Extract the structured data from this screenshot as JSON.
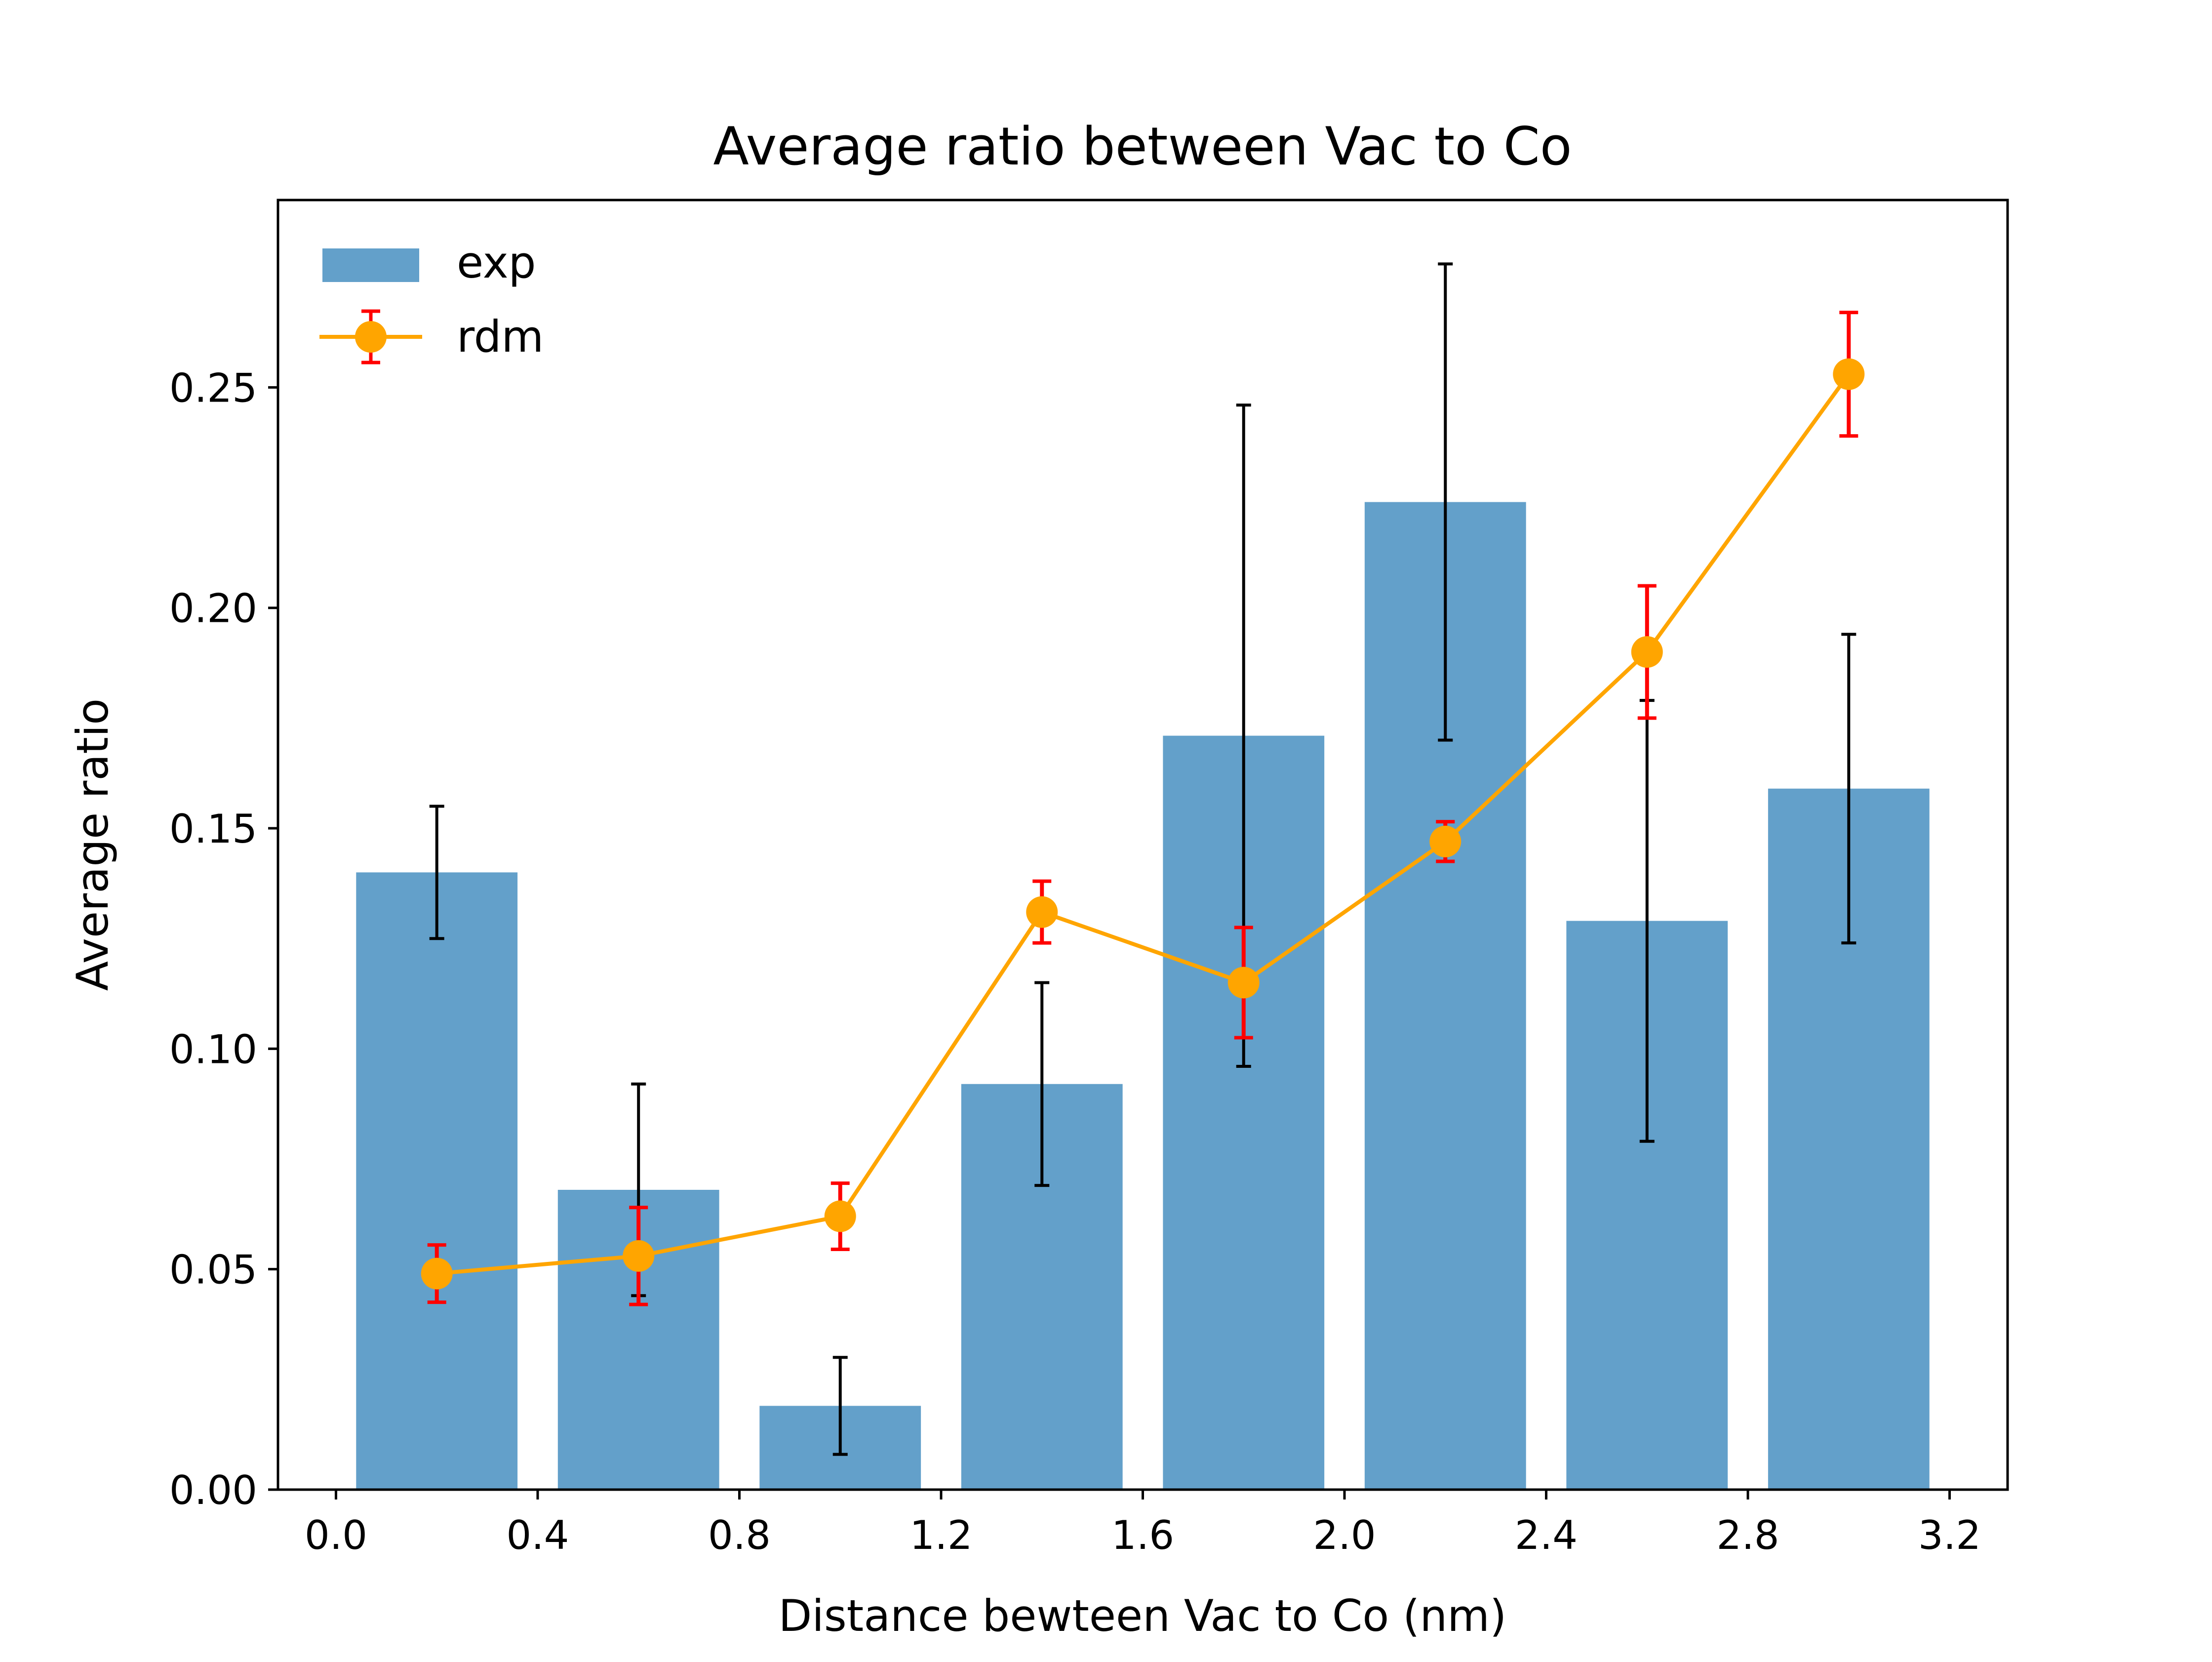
{
  "chart_data": {
    "type": "bar",
    "title": "Average ratio between Vac to Co",
    "xlabel": "Distance bewteen Vac to Co (nm)",
    "ylabel": "Average ratio",
    "xlim": [
      -0.115,
      3.315
    ],
    "ylim": [
      0.0,
      0.2925
    ],
    "xticks": [
      0.0,
      0.4,
      0.8,
      1.2,
      1.6,
      2.0,
      2.4,
      2.8,
      3.2
    ],
    "xtick_labels": [
      "0.0",
      "0.4",
      "0.8",
      "1.2",
      "1.6",
      "2.0",
      "2.4",
      "2.8",
      "3.2"
    ],
    "yticks": [
      0.0,
      0.05,
      0.1,
      0.15,
      0.2,
      0.25
    ],
    "ytick_labels": [
      "0.00",
      "0.05",
      "0.10",
      "0.15",
      "0.20",
      "0.25"
    ],
    "grid": false,
    "legend_position": "upper-left",
    "x": [
      0.2,
      0.6,
      1.0,
      1.4,
      1.8,
      2.2,
      2.6,
      3.0
    ],
    "bar_width": 0.32,
    "series": [
      {
        "name": "exp",
        "type": "bar",
        "color": "#63a0ca",
        "error_color": "#000000",
        "values": [
          0.14,
          0.068,
          0.019,
          0.092,
          0.171,
          0.224,
          0.129,
          0.159
        ],
        "errors": [
          0.015,
          0.024,
          0.011,
          0.023,
          0.075,
          0.054,
          0.05,
          0.035
        ]
      },
      {
        "name": "rdm",
        "type": "line",
        "color": "#ffa500",
        "error_color": "#ff0000",
        "values": [
          0.049,
          0.053,
          0.062,
          0.131,
          0.115,
          0.147,
          0.19,
          0.253
        ],
        "errors": [
          0.0065,
          0.011,
          0.0075,
          0.007,
          0.0125,
          0.0045,
          0.015,
          0.014
        ]
      }
    ]
  }
}
